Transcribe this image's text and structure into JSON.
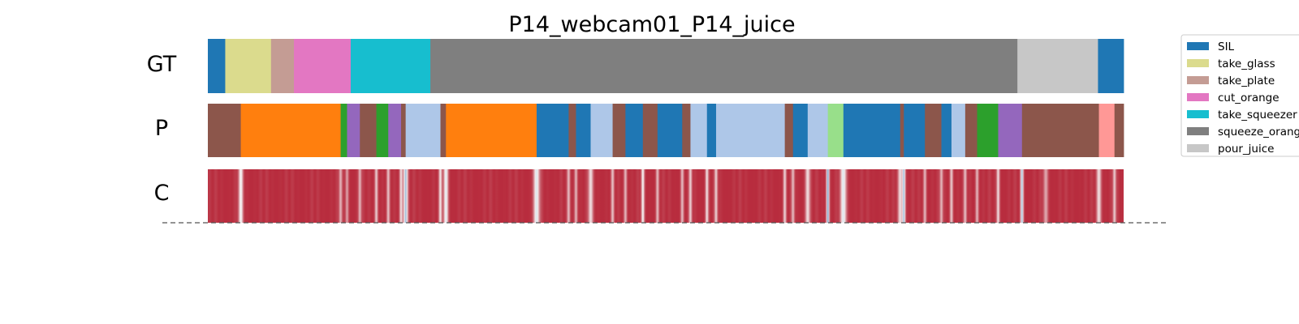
{
  "chart_data": {
    "type": "segmentation",
    "title": "P14_webcam01_P14_juice",
    "x_range": [
      0,
      1000
    ],
    "rows": [
      {
        "label": "GT",
        "segments": [
          {
            "start": 0,
            "end": 19,
            "cls": "SIL"
          },
          {
            "start": 19,
            "end": 69,
            "cls": "take_glass"
          },
          {
            "start": 69,
            "end": 94,
            "cls": "take_plate"
          },
          {
            "start": 94,
            "end": 156,
            "cls": "cut_orange"
          },
          {
            "start": 156,
            "end": 243,
            "cls": "take_squeezer"
          },
          {
            "start": 243,
            "end": 884,
            "cls": "squeeze_orange"
          },
          {
            "start": 884,
            "end": 972,
            "cls": "pour_juice"
          },
          {
            "start": 972,
            "end": 1000,
            "cls": "SIL"
          }
        ]
      },
      {
        "label": "P",
        "segments": [
          {
            "start": 0,
            "end": 36,
            "color": "#8c564b"
          },
          {
            "start": 36,
            "end": 145,
            "color": "#ff7f0e"
          },
          {
            "start": 145,
            "end": 152,
            "color": "#2ca02c"
          },
          {
            "start": 152,
            "end": 166,
            "color": "#9467bd"
          },
          {
            "start": 166,
            "end": 184,
            "color": "#8c564b"
          },
          {
            "start": 184,
            "end": 197,
            "color": "#2ca02c"
          },
          {
            "start": 197,
            "end": 211,
            "color": "#9467bd"
          },
          {
            "start": 211,
            "end": 216,
            "color": "#8c564b"
          },
          {
            "start": 216,
            "end": 254,
            "color": "#aec7e8"
          },
          {
            "start": 254,
            "end": 260,
            "color": "#8c564b"
          },
          {
            "start": 260,
            "end": 359,
            "color": "#ff7f0e"
          },
          {
            "start": 359,
            "end": 394,
            "color": "#1f77b4"
          },
          {
            "start": 394,
            "end": 402,
            "color": "#8c564b"
          },
          {
            "start": 402,
            "end": 418,
            "color": "#1f77b4"
          },
          {
            "start": 418,
            "end": 442,
            "color": "#aec7e8"
          },
          {
            "start": 442,
            "end": 456,
            "color": "#8c564b"
          },
          {
            "start": 456,
            "end": 475,
            "color": "#1f77b4"
          },
          {
            "start": 475,
            "end": 491,
            "color": "#8c564b"
          },
          {
            "start": 491,
            "end": 518,
            "color": "#1f77b4"
          },
          {
            "start": 518,
            "end": 527,
            "color": "#8c564b"
          },
          {
            "start": 527,
            "end": 545,
            "color": "#aec7e8"
          },
          {
            "start": 545,
            "end": 555,
            "color": "#1f77b4"
          },
          {
            "start": 555,
            "end": 630,
            "color": "#aec7e8"
          },
          {
            "start": 630,
            "end": 639,
            "color": "#8c564b"
          },
          {
            "start": 639,
            "end": 655,
            "color": "#1f77b4"
          },
          {
            "start": 655,
            "end": 677,
            "color": "#aec7e8"
          },
          {
            "start": 677,
            "end": 694,
            "color": "#98df8a"
          },
          {
            "start": 694,
            "end": 756,
            "color": "#1f77b4"
          },
          {
            "start": 756,
            "end": 760,
            "color": "#8c564b"
          },
          {
            "start": 760,
            "end": 783,
            "color": "#1f77b4"
          },
          {
            "start": 783,
            "end": 801,
            "color": "#8c564b"
          },
          {
            "start": 801,
            "end": 812,
            "color": "#1f77b4"
          },
          {
            "start": 812,
            "end": 827,
            "color": "#aec7e8"
          },
          {
            "start": 827,
            "end": 840,
            "color": "#8c564b"
          },
          {
            "start": 840,
            "end": 863,
            "color": "#2ca02c"
          },
          {
            "start": 863,
            "end": 889,
            "color": "#9467bd"
          },
          {
            "start": 889,
            "end": 973,
            "color": "#8c564b"
          },
          {
            "start": 973,
            "end": 990,
            "color": "#ff9896"
          },
          {
            "start": 990,
            "end": 1000,
            "color": "#8c564b"
          }
        ]
      },
      {
        "label": "C",
        "confidence_dips": [
          {
            "pos": 36,
            "depth": 0.9,
            "width": 3
          },
          {
            "pos": 145,
            "depth": 0.6,
            "width": 2
          },
          {
            "pos": 152,
            "depth": 0.5,
            "width": 2
          },
          {
            "pos": 166,
            "depth": 0.6,
            "width": 2
          },
          {
            "pos": 184,
            "depth": 0.7,
            "width": 2
          },
          {
            "pos": 197,
            "depth": 0.6,
            "width": 2
          },
          {
            "pos": 211,
            "depth": 0.8,
            "width": 2
          },
          {
            "pos": 216,
            "depth": 1.2,
            "width": 3
          },
          {
            "pos": 254,
            "depth": 0.8,
            "width": 2
          },
          {
            "pos": 260,
            "depth": 1.0,
            "width": 3
          },
          {
            "pos": 359,
            "depth": 1.0,
            "width": 4
          },
          {
            "pos": 394,
            "depth": 0.6,
            "width": 2
          },
          {
            "pos": 402,
            "depth": 0.6,
            "width": 2
          },
          {
            "pos": 418,
            "depth": 0.8,
            "width": 3
          },
          {
            "pos": 442,
            "depth": 0.6,
            "width": 2
          },
          {
            "pos": 456,
            "depth": 0.6,
            "width": 2
          },
          {
            "pos": 475,
            "depth": 0.9,
            "width": 2
          },
          {
            "pos": 491,
            "depth": 0.6,
            "width": 2
          },
          {
            "pos": 518,
            "depth": 0.6,
            "width": 2
          },
          {
            "pos": 527,
            "depth": 0.7,
            "width": 2
          },
          {
            "pos": 545,
            "depth": 0.8,
            "width": 2
          },
          {
            "pos": 555,
            "depth": 0.7,
            "width": 2
          },
          {
            "pos": 630,
            "depth": 0.7,
            "width": 2
          },
          {
            "pos": 639,
            "depth": 0.6,
            "width": 2
          },
          {
            "pos": 655,
            "depth": 0.8,
            "width": 3
          },
          {
            "pos": 677,
            "depth": 1.3,
            "width": 2
          },
          {
            "pos": 694,
            "depth": 1.0,
            "width": 4
          },
          {
            "pos": 756,
            "depth": 0.8,
            "width": 3
          },
          {
            "pos": 760,
            "depth": 1.2,
            "width": 2
          },
          {
            "pos": 783,
            "depth": 0.6,
            "width": 2
          },
          {
            "pos": 801,
            "depth": 0.6,
            "width": 2
          },
          {
            "pos": 812,
            "depth": 0.7,
            "width": 2
          },
          {
            "pos": 827,
            "depth": 0.6,
            "width": 2
          },
          {
            "pos": 840,
            "depth": 0.6,
            "width": 2
          },
          {
            "pos": 863,
            "depth": 0.8,
            "width": 2
          },
          {
            "pos": 889,
            "depth": 1.2,
            "width": 2
          },
          {
            "pos": 915,
            "depth": 0.5,
            "width": 3
          },
          {
            "pos": 973,
            "depth": 0.8,
            "width": 3
          },
          {
            "pos": 990,
            "depth": 0.7,
            "width": 2
          }
        ]
      }
    ],
    "legend": [
      {
        "label": "SIL",
        "color": "#1f77b4"
      },
      {
        "label": "take_glass",
        "color": "#dbdb8d"
      },
      {
        "label": "take_plate",
        "color": "#c49c94"
      },
      {
        "label": "cut_orange",
        "color": "#e377c2"
      },
      {
        "label": "take_squeezer",
        "color": "#17becf"
      },
      {
        "label": "squeeze_orange",
        "color": "#7f7f7f"
      },
      {
        "label": "pour_juice",
        "color": "#c7c7c7"
      }
    ],
    "legend_placement": "top-right, clipped",
    "confidence_colormap": [
      "#b2182b",
      "#f7f7f7",
      "#2166ac"
    ]
  }
}
